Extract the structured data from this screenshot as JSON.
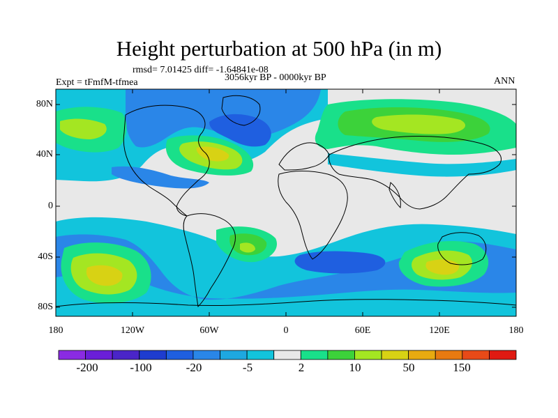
{
  "title": "Height perturbation at 500 hPa (in m)",
  "stats": "rmsd= 7.01425 diff= -1.64841e-08",
  "experiment": "Expt = tFmfM-tfmea",
  "period": "3056kyr BP - 0000kyr BP",
  "season": "ANN",
  "lat_labels": [
    "80N",
    "40N",
    "0",
    "40S",
    "80S"
  ],
  "lon_labels": [
    "180",
    "120W",
    "60W",
    "0",
    "60E",
    "120E",
    "180"
  ],
  "colorbar": {
    "colors": [
      "#8a2be2",
      "#6a1fd8",
      "#4a25c8",
      "#1e3ccf",
      "#1f5fe0",
      "#2a86e8",
      "#1ea8e0",
      "#12c4dc",
      "#e8e8e8",
      "#19e08a",
      "#3cd23a",
      "#a4e622",
      "#d8d214",
      "#e8aa10",
      "#e87a10",
      "#e84a18",
      "#e01a12"
    ],
    "labels": [
      "-200",
      "-100",
      "-20",
      "-5",
      "2",
      "10",
      "50",
      "150"
    ]
  },
  "palette": {
    "bg": "#e8e8e8",
    "d1": "#12c4dc",
    "d2": "#2a86e8",
    "d3": "#1f5fe0",
    "u1": "#19e08a",
    "u2": "#3cd23a",
    "u3": "#a4e622",
    "u4": "#d8d214"
  }
}
